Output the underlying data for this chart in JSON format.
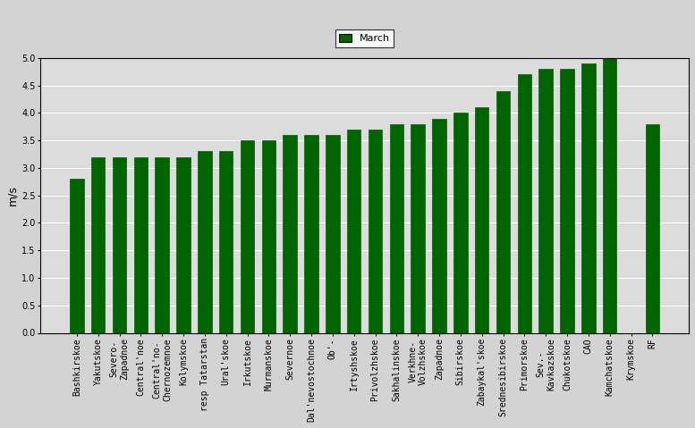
{
  "categories": [
    "Bashkirskoe",
    "Yakutskoe",
    "Severo-\nZapadnoe",
    "Central'noe",
    "Central'no-\nChernozemnoe",
    "Kolymskoe",
    "resp Tatarstan",
    "Ural'skoe",
    "Irkutskoe",
    "Murmanskoe",
    "Severnoe",
    "Dal'nevostochnoe",
    "Ob'-",
    "Irtyshskoe",
    "Privolzhskoe",
    "Sakhalinskoe",
    "Verkhne-\nVolzhskoe",
    "Zapadnoe",
    "Sibirskoe",
    "Zabaykal'skoe",
    "Srednesibirskoe",
    "Primorskoe",
    "Sev.-\nKavkazskoe",
    "Chukotskoe",
    "CAO",
    "Kamchatskoe",
    "Krymskoe",
    "RF"
  ],
  "values": [
    2.8,
    3.2,
    3.2,
    3.2,
    3.2,
    3.2,
    3.3,
    3.3,
    3.5,
    3.5,
    3.6,
    3.6,
    3.6,
    3.7,
    3.7,
    3.8,
    3.8,
    3.9,
    4.0,
    4.1,
    4.4,
    4.7,
    4.8,
    4.8,
    4.9,
    5.0,
    0.0,
    3.8
  ],
  "bar_color": "#006400",
  "ylabel": "m/s",
  "legend_label": "March",
  "legend_color": "#006400",
  "ylim": [
    0,
    5.0
  ],
  "yticks": [
    0,
    0.5,
    1.0,
    1.5,
    2.0,
    2.5,
    3.0,
    3.5,
    4.0,
    4.5,
    5.0
  ],
  "plot_bg_color": "#dcdcdc",
  "fig_bg_color": "#d3d3d3",
  "grid_color": "#ffffff",
  "bar_width": 0.65,
  "tick_fontsize": 7,
  "ylabel_fontsize": 9
}
